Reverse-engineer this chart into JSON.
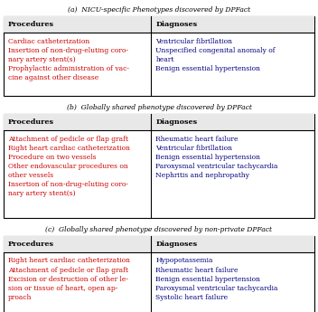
{
  "title_a": "(a)  NICU-specific Phenotypes discovered by DPFact",
  "title_b": "(b)  Globally shared phenotype discovered by DPFact",
  "title_c": "(c)  Globally shared phenotype discovered by non-private DPFact",
  "header_proc": "Procedures",
  "header_diag": "Diagnoses",
  "table_a": {
    "procedures": [
      "Cardiac catheterization",
      "Insertion of non-drug-eluting coro-\nnary artery stent(s)",
      "Prophylactic administration of vac-\ncine against other disease"
    ],
    "diagnoses": [
      "Ventricular fibrillation",
      "Unspecified congenital anomaly of\nheart",
      "Benign essential hypertension"
    ]
  },
  "table_b": {
    "procedures": [
      "Attachment of pedicle or flap graft",
      "Right heart cardiac catheterization",
      "Procedure on two vessels",
      "Other endovascular procedures on\nother vessels",
      "Insertion of non-drug-eluting coro-\nnary artery stent(s)"
    ],
    "diagnoses": [
      "Rheumatic heart failure",
      "Ventricular fibrillation",
      "Benign essential hypertension",
      "Paroxysmal ventricular tachycardia",
      "Nephritis and nephropathy"
    ]
  },
  "table_c": {
    "procedures": [
      "Right heart cardiac catheterization",
      "Attachment of pedicle or flap graft",
      "Excision or destruction of other le-\nsion or tissue of heart, open ap-\nproach"
    ],
    "diagnoses": [
      "Hypopotassemia",
      "Rheumatic heart failure",
      "Benign essential hypertension",
      "Paroxysmal ventricular tachycardia",
      "Systolic heart failure"
    ]
  },
  "color_proc": "#cc0000",
  "color_diag": "#000080",
  "color_header": "#000000",
  "color_bg": "#ffffff"
}
